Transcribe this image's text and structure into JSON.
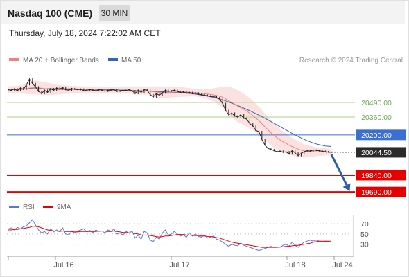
{
  "header": {
    "title": "Nasdaq 100 (CME)",
    "timeframe": "30 MIN"
  },
  "timestamp": "Thursday, July 18, 2024 7:22:02 AM CET",
  "legend": {
    "bb_label": "MA 20 + Bollinger Bands",
    "ma50_label": "MA 50",
    "credit": "Research © 2024 Trading Central"
  },
  "colors": {
    "bb_line": "#f08080",
    "bb_fill": "#fbd9d9",
    "ma50": "#3366aa",
    "resistance": "#a8d28a",
    "pivot": "#3b6fd4",
    "support": "#e60000",
    "price_line": "#222222",
    "price_box": "#2b2b2b",
    "arrow": "#2a5ea8",
    "rsi": "#5577dd",
    "rsi_ma": "#e60000"
  },
  "chart_data": [
    {
      "type": "line",
      "x_ticks": [
        "Jul 16",
        "Jul 17",
        "Jul 18",
        "Jul 24"
      ],
      "ylim": [
        19660,
        20800
      ],
      "levels": [
        {
          "value": 20490.0,
          "label": "20490.00",
          "kind": "resistance"
        },
        {
          "value": 20360.0,
          "label": "20360.00",
          "kind": "resistance"
        },
        {
          "value": 20200.0,
          "label": "20200.00",
          "kind": "pivot"
        },
        {
          "value": 20044.5,
          "label": "20044.50",
          "kind": "last_price"
        },
        {
          "value": 19840.0,
          "label": "19840.00",
          "kind": "support"
        },
        {
          "value": 19690.0,
          "label": "19690.00",
          "kind": "support"
        }
      ],
      "price": [
        20605,
        20598,
        20612,
        20595,
        20620,
        20608,
        20650,
        20700,
        20660,
        20630,
        20590,
        20570,
        20600,
        20580,
        20615,
        20598,
        20620,
        20610,
        20625,
        20605,
        20600,
        20615,
        20610,
        20605,
        20610,
        20595,
        20600,
        20605,
        20600,
        20595,
        20605,
        20600,
        20590,
        20598,
        20602,
        20605,
        20590,
        20595,
        20600,
        20598,
        20605,
        20595,
        20570,
        20600,
        20580,
        20605,
        20600,
        20560,
        20540,
        20570,
        20555,
        20575,
        20600,
        20590,
        20595,
        20600,
        20590,
        20580,
        20585,
        20575,
        20580,
        20570,
        20575,
        20565,
        20560,
        20555,
        20550,
        20545,
        20545,
        20535,
        20520,
        20480,
        20420,
        20380,
        20395,
        20370,
        20360,
        20380,
        20350,
        20340,
        20300,
        20280,
        20240,
        20230,
        20160,
        20110,
        20080,
        20070,
        20060,
        20050,
        20055,
        20045,
        20050,
        20030,
        20060,
        20040,
        20015,
        20035,
        20050,
        20060,
        20055,
        20065,
        20062,
        20058,
        20055,
        20050,
        20047,
        20044.5
      ],
      "ma20": [
        20605,
        20606,
        20606,
        20605,
        20607,
        20608,
        20612,
        20620,
        20622,
        20624,
        20622,
        20618,
        20615,
        20612,
        20610,
        20606,
        20605,
        20605,
        20606,
        20605,
        20604,
        20604,
        20605,
        20606,
        20606,
        20604,
        20603,
        20603,
        20602,
        20602,
        20603,
        20602,
        20601,
        20600,
        20600,
        20601,
        20600,
        20599,
        20598,
        20598,
        20599,
        20598,
        20595,
        20595,
        20593,
        20594,
        20594,
        20590,
        20586,
        20583,
        20580,
        20578,
        20579,
        20580,
        20581,
        20583,
        20583,
        20584,
        20584,
        20583,
        20582,
        20580,
        20578,
        20575,
        20572,
        20569,
        20565,
        20562,
        20558,
        20553,
        20547,
        20537,
        20523,
        20505,
        20490,
        20474,
        20458,
        20444,
        20428,
        20412,
        20393,
        20372,
        20350,
        20327,
        20300,
        20272,
        20246,
        20220,
        20196,
        20175,
        20156,
        20139,
        20124,
        20108,
        20096,
        20085,
        20073,
        20064,
        20057,
        20055,
        20053,
        20051,
        20050,
        20049,
        20049,
        20049,
        20048,
        20047
      ],
      "ma50": [
        20610,
        20610,
        20611,
        20611,
        20612,
        20612,
        20613,
        20614,
        20614,
        20614,
        20614,
        20614,
        20614,
        20614,
        20614,
        20613,
        20613,
        20613,
        20613,
        20612,
        20612,
        20612,
        20611,
        20611,
        20611,
        20610,
        20610,
        20610,
        20609,
        20609,
        20608,
        20608,
        20607,
        20606,
        20605,
        20604,
        20603,
        20602,
        20601,
        20600,
        20599,
        20598,
        20597,
        20596,
        20595,
        20594,
        20593,
        20592,
        20591,
        20589,
        20588,
        20586,
        20585,
        20583,
        20582,
        20580,
        20579,
        20577,
        20575,
        20573,
        20571,
        20568,
        20565,
        20561,
        20557,
        20553,
        20548,
        20542,
        20536,
        20529,
        20521,
        20513,
        20504,
        20494,
        20484,
        20474,
        20463,
        20452,
        20440,
        20428,
        20416,
        20403,
        20390,
        20377,
        20363,
        20349,
        20334,
        20319,
        20304,
        20289,
        20274,
        20259,
        20244,
        20229,
        20214,
        20200,
        20186,
        20173,
        20160,
        20148,
        20138,
        20128,
        20120,
        20113,
        20107,
        20102,
        20099,
        20097
      ],
      "bb_width": [
        30,
        30,
        32,
        34,
        36,
        40,
        46,
        55,
        60,
        62,
        62,
        60,
        58,
        55,
        52,
        48,
        45,
        42,
        40,
        38,
        36,
        34,
        32,
        30,
        30,
        30,
        30,
        30,
        30,
        30,
        30,
        30,
        30,
        30,
        30,
        30,
        30,
        30,
        30,
        30,
        30,
        30,
        32,
        32,
        34,
        34,
        34,
        38,
        42,
        45,
        47,
        48,
        48,
        48,
        47,
        46,
        45,
        44,
        42,
        40,
        38,
        36,
        34,
        34,
        36,
        40,
        45,
        52,
        60,
        70,
        82,
        95,
        110,
        125,
        135,
        140,
        142,
        142,
        140,
        138,
        135,
        132,
        128,
        125,
        122,
        118,
        115,
        112,
        110,
        105,
        100,
        95,
        90,
        85,
        80,
        75,
        70,
        65,
        60,
        55,
        50,
        45,
        40,
        36,
        34,
        32,
        30,
        28
      ]
    },
    {
      "type": "line",
      "title": "RSI",
      "ylim": [
        12,
        85
      ],
      "y_ticks": [
        "70",
        "50",
        "30"
      ],
      "series": [
        {
          "name": "RSI",
          "values": [
            60,
            62,
            58,
            63,
            60,
            64,
            66,
            72,
            78,
            68,
            58,
            52,
            55,
            50,
            60,
            54,
            58,
            55,
            62,
            50,
            48,
            55,
            52,
            56,
            58,
            60,
            54,
            57,
            53,
            58,
            55,
            56,
            52,
            58,
            55,
            60,
            50,
            52,
            48,
            55,
            52,
            56,
            42,
            48,
            40,
            55,
            52,
            38,
            35,
            44,
            40,
            52,
            58,
            48,
            50,
            55,
            50,
            46,
            48,
            44,
            52,
            46,
            50,
            45,
            44,
            48,
            42,
            44,
            46,
            40,
            38,
            34,
            30,
            26,
            30,
            28,
            27,
            32,
            28,
            26,
            24,
            22,
            20,
            18,
            20,
            22,
            24,
            26,
            24,
            25,
            24,
            28,
            30,
            26,
            34,
            28,
            24,
            30,
            34,
            36,
            38,
            36,
            38,
            36,
            34,
            36,
            35,
            34
          ]
        },
        {
          "name": "9MA",
          "values": [
            58,
            58,
            59,
            59,
            60,
            61,
            62,
            63,
            65,
            65,
            64,
            62,
            60,
            58,
            57,
            56,
            56,
            55,
            56,
            55,
            55,
            55,
            54,
            54,
            55,
            55,
            55,
            55,
            55,
            55,
            56,
            56,
            56,
            55,
            55,
            56,
            55,
            54,
            53,
            53,
            52,
            52,
            51,
            50,
            48,
            48,
            48,
            47,
            46,
            45,
            44,
            45,
            46,
            46,
            47,
            48,
            49,
            49,
            49,
            48,
            48,
            47,
            47,
            47,
            46,
            46,
            45,
            45,
            44,
            43,
            42,
            40,
            38,
            36,
            34,
            33,
            32,
            31,
            30,
            29,
            28,
            27,
            26,
            25,
            24,
            24,
            24,
            24,
            24,
            24,
            25,
            25,
            26,
            26,
            27,
            28,
            28,
            29,
            30,
            31,
            32,
            34,
            35,
            36,
            36,
            36,
            36,
            36
          ]
        }
      ]
    }
  ],
  "rsi_legend": {
    "rsi_label": "RSI",
    "ma_label": "9MA"
  }
}
